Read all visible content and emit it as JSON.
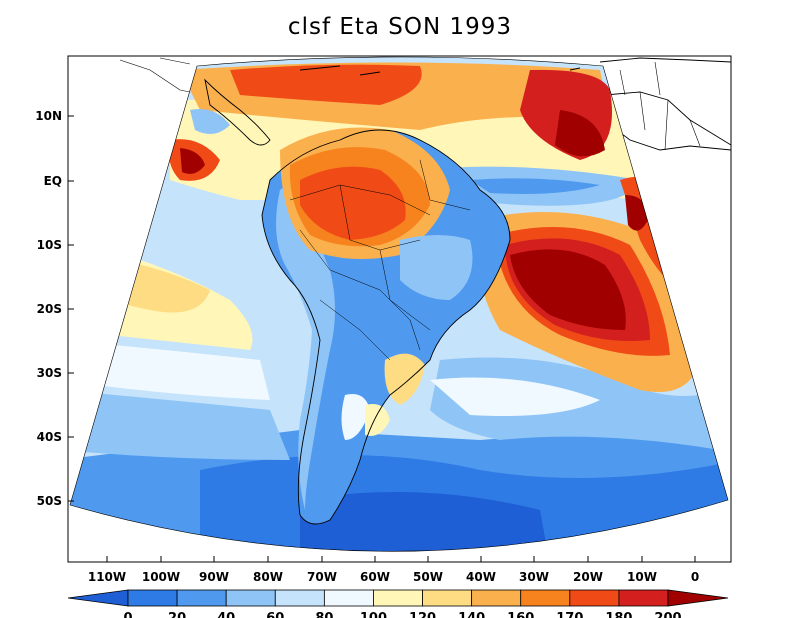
{
  "title": "clsf Eta SON 1993",
  "lat_labels": [
    "10N",
    "EQ",
    "10S",
    "20S",
    "30S",
    "40S",
    "50S"
  ],
  "lon_labels": [
    "110W",
    "100W",
    "90W",
    "80W",
    "70W",
    "60W",
    "50W",
    "40W",
    "30W",
    "20W",
    "10W",
    "0"
  ],
  "colorbar": {
    "labels": [
      "0",
      "20",
      "40",
      "60",
      "80",
      "100",
      "120",
      "140",
      "160",
      "170",
      "180",
      "200"
    ],
    "colors": [
      "#1e5fd6",
      "#2f7be6",
      "#4f9aef",
      "#8fc4f6",
      "#c5e3fb",
      "#f0f9ff",
      "#fff6b8",
      "#fddc84",
      "#fbb04e",
      "#f7831f",
      "#f04a16",
      "#d41f1f",
      "#a00000"
    ]
  },
  "field_colors": {
    "dark_blue": "#1e5fd6",
    "blue": "#2f7be6",
    "mid_blue": "#4f9aef",
    "light_blue": "#8fc4f6",
    "pale_blue": "#c5e3fb",
    "white": "#f0f9ff",
    "pale_yellow": "#fff6b8",
    "yellow": "#fddc84",
    "light_orange": "#fbb04e",
    "orange": "#f7831f",
    "red": "#f04a16",
    "deep_red": "#d41f1f",
    "dark_red": "#a00000"
  }
}
